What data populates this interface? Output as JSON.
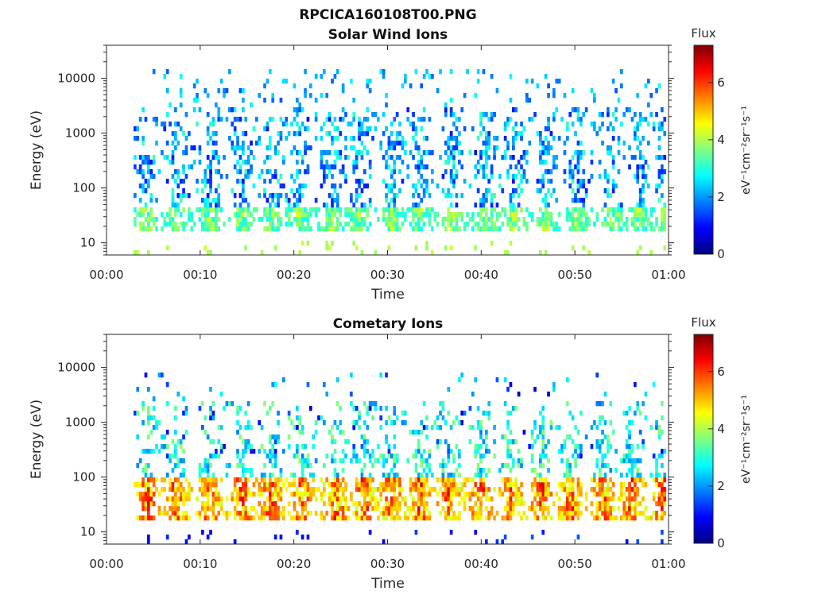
{
  "figure": {
    "title": "RPCICA160108T00.PNG"
  },
  "colormap": [
    "#00007f",
    "#0000ff",
    "#007fff",
    "#00ffff",
    "#7fff7f",
    "#ffff00",
    "#ff7f00",
    "#ff0000",
    "#7f0000"
  ],
  "chart_data": [
    {
      "type": "heatmap",
      "title": "Solar Wind Ions",
      "xlabel": "Time",
      "ylabel": "Energy (eV)",
      "x_ticks": [
        "00:00",
        "00:10",
        "00:20",
        "00:30",
        "00:40",
        "00:50",
        "01:00"
      ],
      "x_range_minutes": [
        0,
        60
      ],
      "y_scale": "log",
      "y_ticks": [
        "10",
        "100",
        "1000",
        "10000"
      ],
      "y_range": [
        6,
        40000
      ],
      "colorbar": {
        "title": "Flux",
        "label": "eV⁻¹cm⁻²sr⁻¹s⁻¹",
        "ticks": [
          "0",
          "2",
          "4",
          "6"
        ],
        "range": [
          0,
          7.3
        ]
      },
      "data_start_minute": 3,
      "seed": 7,
      "bursts_minutes": [
        4,
        7.5,
        11,
        14.5,
        17.5,
        20.5,
        24,
        27,
        30.5,
        33.5,
        37,
        40.5,
        43.5,
        47,
        50.5,
        54,
        57,
        59.8
      ],
      "low_band_eV": [
        18,
        48
      ],
      "low_band_flux": [
        2.8,
        4.6
      ],
      "tail_band_eV": [
        48,
        3000
      ],
      "tail_band_flux": [
        1.0,
        3.2
      ],
      "background_eV": [
        150,
        15000
      ],
      "background_flux": [
        1.5,
        2.8
      ],
      "background_density": 0.09,
      "edge_spikes_eV": [
        6,
        12
      ],
      "edge_spikes_flux": [
        3.8,
        4.2
      ]
    },
    {
      "type": "heatmap",
      "title": "Cometary Ions",
      "xlabel": "Time",
      "ylabel": "Energy (eV)",
      "x_ticks": [
        "00:00",
        "00:10",
        "00:20",
        "00:30",
        "00:40",
        "00:50",
        "01:00"
      ],
      "x_range_minutes": [
        0,
        60
      ],
      "y_scale": "log",
      "y_ticks": [
        "10",
        "100",
        "1000",
        "10000"
      ],
      "y_range": [
        6,
        40000
      ],
      "colorbar": {
        "title": "Flux",
        "label": "eV⁻¹cm⁻²sr⁻¹s⁻¹",
        "ticks": [
          "0",
          "2",
          "4",
          "6"
        ],
        "range": [
          0,
          7.3
        ]
      },
      "data_start_minute": 3,
      "seed": 19,
      "bursts_minutes": [
        4.5,
        7.5,
        11,
        14.5,
        17.5,
        21,
        24.5,
        27.5,
        30.5,
        33.5,
        36.5,
        40,
        43,
        46.5,
        49.5,
        53,
        56,
        59.5
      ],
      "low_band_eV": [
        15,
        90
      ],
      "low_band_flux": [
        4.2,
        6.8
      ],
      "tail_band_eV": [
        90,
        2500
      ],
      "tail_band_flux": [
        1.8,
        3.8
      ],
      "background_eV": [
        200,
        8000
      ],
      "background_flux": [
        0.6,
        2.8
      ],
      "background_density": 0.04,
      "edge_spikes_eV": [
        6,
        12
      ],
      "edge_spikes_flux": [
        0.8,
        1.6
      ]
    }
  ]
}
